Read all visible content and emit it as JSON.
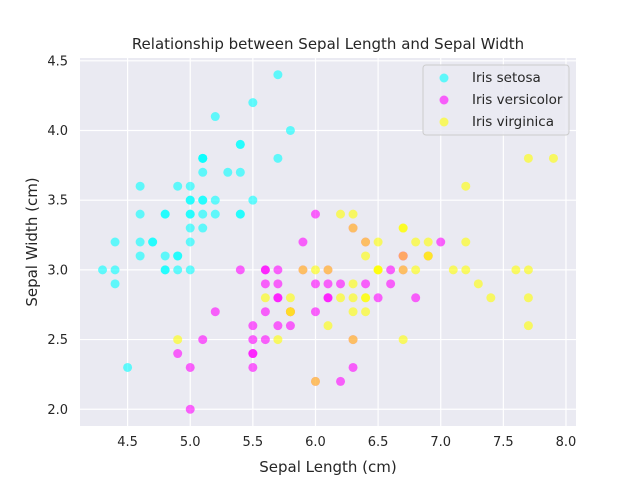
{
  "chart_data": {
    "type": "scatter",
    "title": "Relationship between Sepal Length and Sepal Width",
    "xlabel": "Sepal Length (cm)",
    "ylabel": "Sepal Width (cm)",
    "xlim": [
      4.12,
      8.08
    ],
    "ylim": [
      1.88,
      4.52
    ],
    "xticks": [
      4.5,
      5.0,
      5.5,
      6.0,
      6.5,
      7.0,
      7.5,
      8.0
    ],
    "xtick_labels": [
      "4.5",
      "5.0",
      "5.5",
      "6.0",
      "6.5",
      "7.0",
      "7.5",
      "8.0"
    ],
    "yticks": [
      2.0,
      2.5,
      3.0,
      3.5,
      4.0,
      4.5
    ],
    "ytick_labels": [
      "2.0",
      "2.5",
      "3.0",
      "3.5",
      "4.0",
      "4.5"
    ],
    "grid": true,
    "legend_position": "top-right",
    "background": "#eaeaf2",
    "marker_alpha": 0.6,
    "series": [
      {
        "name": "Iris setosa",
        "color": "#00ffff",
        "x": [
          5.1,
          4.9,
          4.7,
          4.6,
          5.0,
          5.4,
          4.6,
          5.0,
          4.4,
          4.9,
          5.4,
          4.8,
          4.8,
          4.3,
          5.8,
          5.7,
          5.4,
          5.1,
          5.7,
          5.1,
          5.4,
          5.1,
          4.6,
          5.1,
          4.8,
          5.0,
          5.0,
          5.2,
          5.2,
          4.7,
          4.8,
          5.4,
          5.2,
          5.5,
          4.9,
          5.0,
          5.5,
          4.9,
          4.4,
          5.1,
          5.0,
          4.5,
          4.4,
          5.0,
          5.1,
          4.8,
          5.1,
          4.6,
          5.3,
          5.0
        ],
        "y": [
          3.5,
          3.0,
          3.2,
          3.1,
          3.6,
          3.9,
          3.4,
          3.4,
          2.9,
          3.1,
          3.7,
          3.4,
          3.0,
          3.0,
          4.0,
          4.4,
          3.9,
          3.5,
          3.8,
          3.8,
          3.4,
          3.7,
          3.6,
          3.3,
          3.4,
          3.0,
          3.4,
          3.5,
          3.4,
          3.2,
          3.1,
          3.4,
          4.1,
          4.2,
          3.1,
          3.2,
          3.5,
          3.6,
          3.0,
          3.4,
          3.5,
          2.3,
          3.2,
          3.5,
          3.8,
          3.0,
          3.8,
          3.2,
          3.7,
          3.3
        ]
      },
      {
        "name": "Iris versicolor",
        "color": "#ff00ff",
        "x": [
          7.0,
          6.4,
          6.9,
          5.5,
          6.5,
          5.7,
          6.3,
          4.9,
          6.6,
          5.2,
          5.0,
          5.9,
          6.0,
          6.1,
          5.6,
          6.7,
          5.6,
          5.8,
          6.2,
          5.6,
          5.9,
          6.1,
          6.3,
          6.1,
          6.4,
          6.6,
          6.8,
          6.7,
          6.0,
          5.7,
          5.5,
          5.5,
          5.8,
          6.0,
          5.4,
          6.0,
          6.7,
          6.3,
          5.6,
          5.5,
          5.5,
          6.1,
          5.8,
          5.0,
          5.6,
          5.7,
          5.7,
          6.2,
          5.1,
          5.7
        ],
        "y": [
          3.2,
          3.2,
          3.1,
          2.3,
          2.8,
          2.8,
          3.3,
          2.4,
          2.9,
          2.7,
          2.0,
          3.0,
          2.2,
          2.9,
          2.9,
          3.1,
          3.0,
          2.7,
          2.2,
          2.5,
          3.2,
          2.8,
          2.5,
          2.8,
          2.9,
          3.0,
          2.8,
          3.0,
          2.9,
          2.6,
          2.4,
          2.4,
          2.7,
          2.7,
          3.0,
          3.4,
          3.1,
          2.3,
          3.0,
          2.5,
          2.6,
          3.0,
          2.6,
          2.3,
          2.7,
          3.0,
          2.9,
          2.9,
          2.5,
          2.8
        ]
      },
      {
        "name": "Iris virginica",
        "color": "#ffff00",
        "x": [
          6.3,
          5.8,
          7.1,
          6.3,
          6.5,
          7.6,
          4.9,
          7.3,
          6.7,
          7.2,
          6.5,
          6.4,
          6.8,
          5.7,
          5.8,
          6.4,
          6.5,
          7.7,
          7.7,
          6.0,
          6.9,
          5.6,
          7.7,
          6.3,
          6.7,
          7.2,
          6.2,
          6.1,
          6.4,
          7.2,
          7.4,
          7.9,
          6.4,
          6.3,
          6.1,
          7.7,
          6.3,
          6.4,
          6.0,
          6.9,
          6.7,
          6.9,
          5.8,
          6.8,
          6.7,
          6.7,
          6.3,
          6.5,
          6.2,
          5.9
        ],
        "y": [
          3.3,
          2.7,
          3.0,
          2.9,
          3.0,
          3.0,
          2.5,
          2.9,
          2.5,
          3.6,
          3.2,
          2.7,
          3.0,
          2.5,
          2.8,
          3.2,
          3.0,
          3.8,
          2.6,
          2.2,
          3.2,
          2.8,
          2.8,
          2.7,
          3.3,
          3.2,
          2.8,
          3.0,
          2.8,
          3.0,
          2.8,
          3.8,
          2.8,
          2.8,
          2.6,
          3.0,
          3.4,
          3.1,
          3.0,
          3.1,
          3.1,
          3.1,
          2.7,
          3.2,
          3.3,
          3.0,
          2.5,
          3.0,
          3.4,
          3.0
        ]
      }
    ]
  }
}
